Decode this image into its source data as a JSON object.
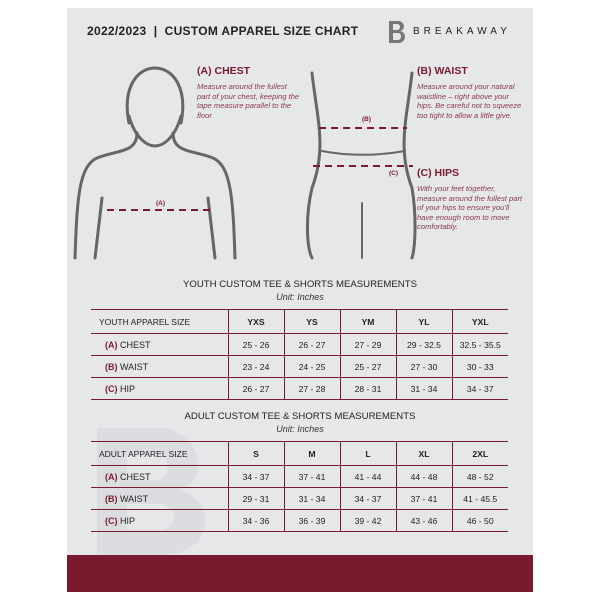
{
  "header": {
    "title": "2022/2023  |  CUSTOM APPAREL SIZE CHART",
    "brand": "BREAKAWAY",
    "logo_letter": "B"
  },
  "guide": {
    "chest": {
      "title": "(A) CHEST",
      "text": "Measure around the fullest part of your chest, keeping the tape measure parallel to the floor",
      "marker": "(A)"
    },
    "waist": {
      "title": "(B) WAIST",
      "text": "Measure around your natural waistline – right above your hips. Be careful not to squeeze too tight to allow a little give.",
      "marker": "(B)"
    },
    "hips": {
      "title": "(C) HIPS",
      "text": "With your feet together, measure around the fullest part of your hips to ensure you'll have enough room to move comfortably.",
      "marker": "(C)"
    }
  },
  "youth": {
    "title": "YOUTH CUSTOM TEE & SHORTS MEASUREMENTS",
    "unit": "Unit: Inches",
    "header": [
      "YOUTH APPAREL SIZE",
      "YXS",
      "YS",
      "YM",
      "YL",
      "YXL"
    ],
    "rows": [
      {
        "letter": "(A)",
        "label": "CHEST",
        "values": [
          "25 - 26",
          "26 - 27",
          "27 - 29",
          "29 - 32.5",
          "32.5 - 35.5"
        ]
      },
      {
        "letter": "(B)",
        "label": "WAIST",
        "values": [
          "23 - 24",
          "24 - 25",
          "25 - 27",
          "27 - 30",
          "30 - 33"
        ]
      },
      {
        "letter": "(C)",
        "label": "HIP",
        "values": [
          "26 - 27",
          "27 - 28",
          "28 - 31",
          "31 - 34",
          "34 - 37"
        ]
      }
    ]
  },
  "adult": {
    "title": "ADULT CUSTOM TEE & SHORTS MEASUREMENTS",
    "unit": "Unit: Inches",
    "header": [
      "ADULT APPAREL SIZE",
      "S",
      "M",
      "L",
      "XL",
      "2XL"
    ],
    "rows": [
      {
        "letter": "(A)",
        "label": "CHEST",
        "values": [
          "34 - 37",
          "37 - 41",
          "41 - 44",
          "44 - 48",
          "48 - 52"
        ]
      },
      {
        "letter": "(B)",
        "label": "WAIST",
        "values": [
          "29 - 31",
          "31 - 34",
          "34 - 37",
          "37 - 41",
          "41 - 45.5"
        ]
      },
      {
        "letter": "(C)",
        "label": "HIP",
        "values": [
          "34 - 36",
          "36 - 39",
          "39 - 42",
          "43 - 46",
          "46 - 50"
        ]
      }
    ]
  },
  "colors": {
    "accent": "#7a1a2e",
    "background": "#e6e7e9"
  }
}
